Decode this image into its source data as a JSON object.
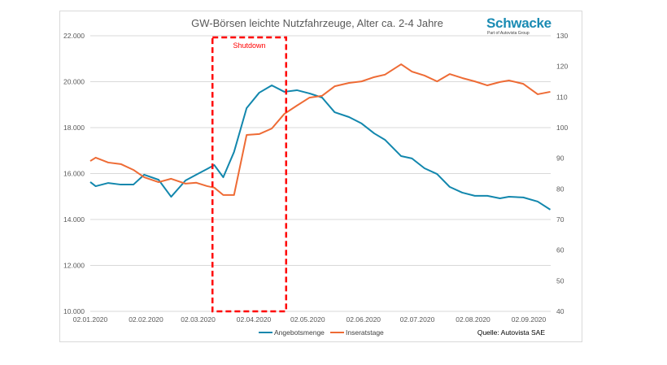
{
  "logo": {
    "name": "Schwacke",
    "tagline": "Part of Autovista Group"
  },
  "source": "Quelle: Autovista SAE",
  "chart_data": {
    "type": "line",
    "title": "GW-Börsen leichte Nutzfahrzeuge, Alter ca. 2-4 Jahre",
    "x_unit": "days since 02.01.2020",
    "x": [
      0,
      3,
      10,
      17,
      24,
      30,
      38,
      45,
      53,
      59,
      65,
      69,
      74,
      80,
      87,
      94,
      101,
      108,
      115,
      122,
      129,
      136,
      144,
      151,
      158,
      164,
      173,
      179,
      186,
      193,
      200,
      207,
      214,
      221,
      228,
      233,
      241,
      249,
      256
    ],
    "xlim": [
      0,
      256
    ],
    "x_ticks": [
      {
        "day": 0,
        "label": "02.01.2020"
      },
      {
        "day": 31,
        "label": "02.02.2020"
      },
      {
        "day": 60,
        "label": "02.03.2020"
      },
      {
        "day": 91,
        "label": "02.04.2020"
      },
      {
        "day": 121,
        "label": "02.05.2020"
      },
      {
        "day": 152,
        "label": "02.06.2020"
      },
      {
        "day": 182,
        "label": "02.07.2020"
      },
      {
        "day": 213,
        "label": "02.08.2020"
      },
      {
        "day": 244,
        "label": "02.09.2020"
      }
    ],
    "y_left": {
      "lim": [
        10000,
        22000
      ],
      "ticks": [
        "10.000",
        "12.000",
        "14.000",
        "16.000",
        "18.000",
        "20.000",
        "22.000"
      ]
    },
    "y_right": {
      "lim": [
        40,
        130
      ],
      "ticks": [
        "40",
        "50",
        "60",
        "70",
        "80",
        "90",
        "100",
        "110",
        "120",
        "130"
      ]
    },
    "grid": true,
    "series": [
      {
        "name": "Angebotsmenge",
        "axis": "left",
        "color": "#1287ad",
        "values": [
          15630,
          15450,
          15590,
          15520,
          15520,
          15950,
          15730,
          14990,
          15700,
          15950,
          16200,
          16370,
          15840,
          16940,
          18850,
          19520,
          19840,
          19560,
          19630,
          19490,
          19310,
          18670,
          18460,
          18180,
          17750,
          17470,
          16760,
          16660,
          16230,
          15980,
          15420,
          15170,
          15030,
          15030,
          14920,
          14990,
          14960,
          14780,
          14430
        ]
      },
      {
        "name": "Inseratstage",
        "axis": "right",
        "color": "#ee6b35",
        "values": [
          89.1,
          90.2,
          88.6,
          88.1,
          86.2,
          83.8,
          82.2,
          83.3,
          81.7,
          82.0,
          80.9,
          80.4,
          78.0,
          78.0,
          97.6,
          97.9,
          99.7,
          104.5,
          107.2,
          109.8,
          110.4,
          113.5,
          114.6,
          115.1,
          116.5,
          117.3,
          120.7,
          118.3,
          117.0,
          115.1,
          117.5,
          116.2,
          115.1,
          113.8,
          114.9,
          115.4,
          114.3,
          110.9,
          111.7
        ]
      }
    ],
    "annotation": {
      "label": "Shutdown",
      "start_day": 68,
      "end_day": 109,
      "color": "#ff0000"
    },
    "legend": "bottom"
  }
}
